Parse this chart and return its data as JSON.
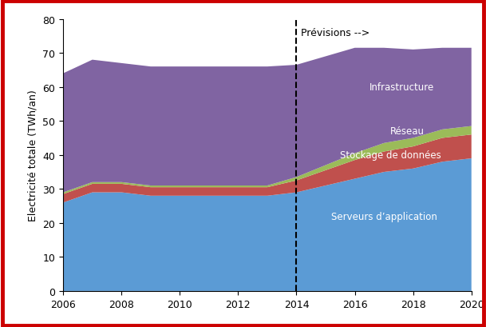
{
  "years": [
    2006,
    2007,
    2008,
    2009,
    2010,
    2011,
    2012,
    2013,
    2014,
    2015,
    2016,
    2017,
    2018,
    2019,
    2020
  ],
  "serveurs": [
    26,
    29,
    29,
    28,
    28,
    28,
    28,
    28,
    29,
    31,
    33,
    35,
    36,
    38,
    39
  ],
  "stockage": [
    2.5,
    2.5,
    2.5,
    2.5,
    2.5,
    2.5,
    2.5,
    2.5,
    3.5,
    4.5,
    5.5,
    6,
    6.5,
    7,
    7
  ],
  "reseau": [
    0.5,
    0.5,
    0.5,
    0.5,
    0.5,
    0.5,
    0.5,
    0.5,
    1,
    1.5,
    2,
    2.5,
    2.5,
    2.5,
    2.5
  ],
  "infrastructure": [
    35,
    36,
    35,
    35,
    35,
    35,
    35,
    35,
    33,
    32,
    31,
    28,
    26,
    24,
    23
  ],
  "color_serveurs": "#5b9bd5",
  "color_stockage": "#c0504d",
  "color_reseau": "#9bbb59",
  "color_infrastructure": "#8064a2",
  "ylabel": "Electricité totale (TWh/an)",
  "ylim": [
    0,
    80
  ],
  "yticks": [
    0,
    10,
    20,
    30,
    40,
    50,
    60,
    70,
    80
  ],
  "xlim": [
    2006,
    2020
  ],
  "xticks": [
    2006,
    2008,
    2010,
    2012,
    2014,
    2016,
    2018,
    2020
  ],
  "vline_x": 2014,
  "vline_label": "Prévisions -->",
  "label_serveurs": "Serveurs d’application",
  "label_stockage": "Stockage de données",
  "label_reseau": "Réseau",
  "label_infrastructure": "Infrastructure",
  "border_color": "#cc0000"
}
